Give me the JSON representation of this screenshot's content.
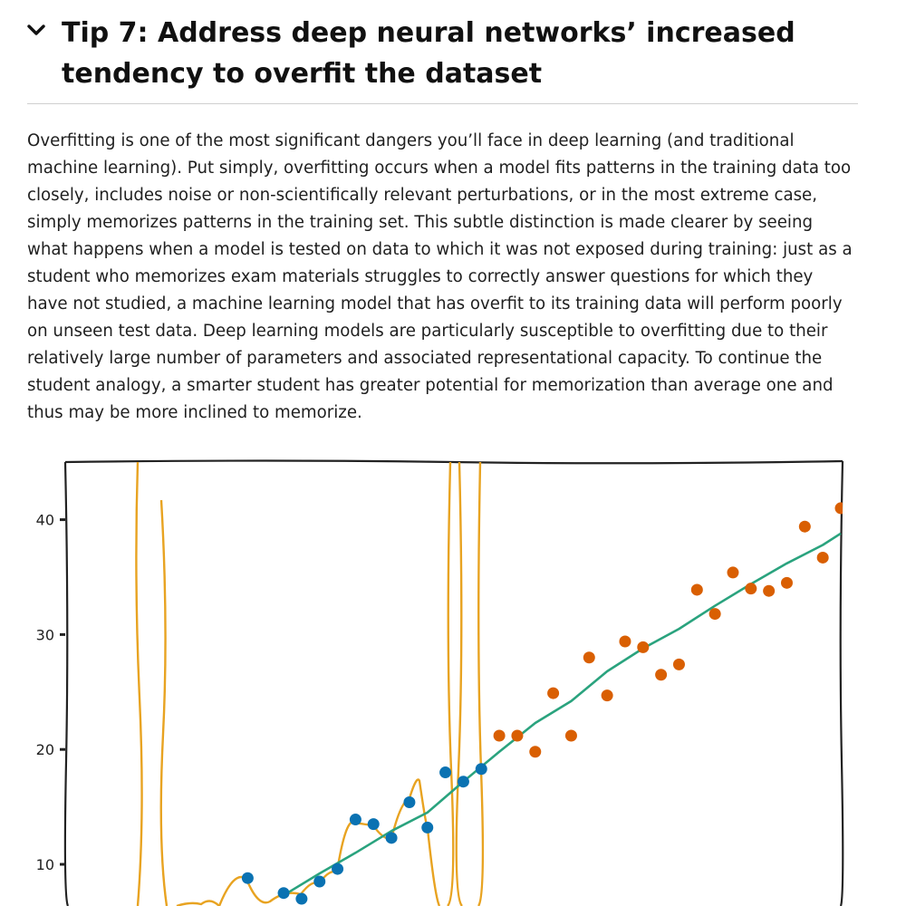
{
  "section": {
    "toggle_icon": "chevron-down-icon",
    "title": "Tip 7: Address deep neural networks’ increased tendency to overfit the dataset",
    "paragraph": "Overfitting is one of the most significant dangers you’ll face in deep learning (and traditional machine learning). Put simply, overfitting occurs when a model fits patterns in the training data too closely, includes noise or non-scientifically relevant perturbations, or in the most extreme case, simply memorizes patterns in the training set. This subtle distinction is made clearer by seeing what happens when a model is tested on data to which it was not exposed during training: just as a student who memorizes exam materials struggles to correctly answer questions for which they have not studied, a machine learning model that has overfit to its training data will perform poorly on unseen test data. Deep learning models are particularly susceptible to overfitting due to their relatively large number of parameters and associated representational capacity. To continue the student analogy, a smarter student has greater potential for memorization than average one and thus may be more inclined to memorize."
  },
  "chart_data": {
    "type": "scatter",
    "style": "hand-drawn",
    "title": "",
    "xlabel": "",
    "ylabel": "",
    "grid": false,
    "y_ticks": [
      "10",
      "20",
      "30",
      "40"
    ],
    "y_tick_values": [
      10,
      20,
      30,
      40
    ],
    "xlim": [
      0,
      43
    ],
    "ylim": [
      0,
      45
    ],
    "colors": {
      "train": "#0a72b2",
      "test": "#d95f02",
      "fit": "#2aa37e",
      "overfit": "#e8a321"
    },
    "series": [
      {
        "kind": "points",
        "x": [
          10,
          12,
          13,
          14,
          15,
          16,
          17,
          18,
          19,
          20,
          21,
          22,
          23
        ],
        "y": [
          8.8,
          7.5,
          7.0,
          8.5,
          9.6,
          13.9,
          13.5,
          12.3,
          15.4,
          13.2,
          18.0,
          17.2,
          18.3
        ]
      },
      {
        "kind": "points",
        "x": [
          24,
          25,
          26,
          27,
          28,
          29,
          30,
          31,
          32,
          33,
          34,
          35,
          36,
          37,
          38,
          39,
          40,
          41,
          42,
          43
        ],
        "y": [
          21.2,
          21.2,
          19.8,
          24.9,
          21.2,
          28.0,
          24.7,
          29.4,
          28.9,
          26.5,
          27.4,
          33.9,
          31.8,
          35.4,
          34.0,
          33.8,
          34.5,
          39.4,
          36.7,
          41.0
        ]
      },
      {
        "kind": "line",
        "x": [
          12,
          14,
          16,
          18,
          20,
          22,
          24,
          26,
          28,
          30,
          32,
          34,
          36,
          38,
          40,
          42,
          43
        ],
        "y": [
          7.3,
          9.2,
          11.0,
          12.9,
          14.5,
          17.2,
          19.8,
          22.3,
          24.2,
          26.8,
          28.8,
          30.5,
          32.5,
          34.4,
          36.2,
          37.8,
          38.8
        ]
      },
      {
        "kind": "line",
        "x": [
          5,
          6,
          7,
          8,
          9,
          10,
          11,
          12,
          13,
          14,
          15,
          16,
          17,
          18,
          19,
          19.5,
          20,
          20.5,
          21,
          21.5,
          22,
          22.5,
          23
        ],
        "y": [
          0,
          0,
          0.2,
          0,
          0,
          8.8,
          5,
          7.5,
          7.0,
          8.5,
          9.6,
          13.9,
          13.5,
          12.3,
          15.4,
          17.2,
          13.2,
          2,
          18.0,
          45,
          45,
          17.2,
          45
        ]
      }
    ]
  }
}
